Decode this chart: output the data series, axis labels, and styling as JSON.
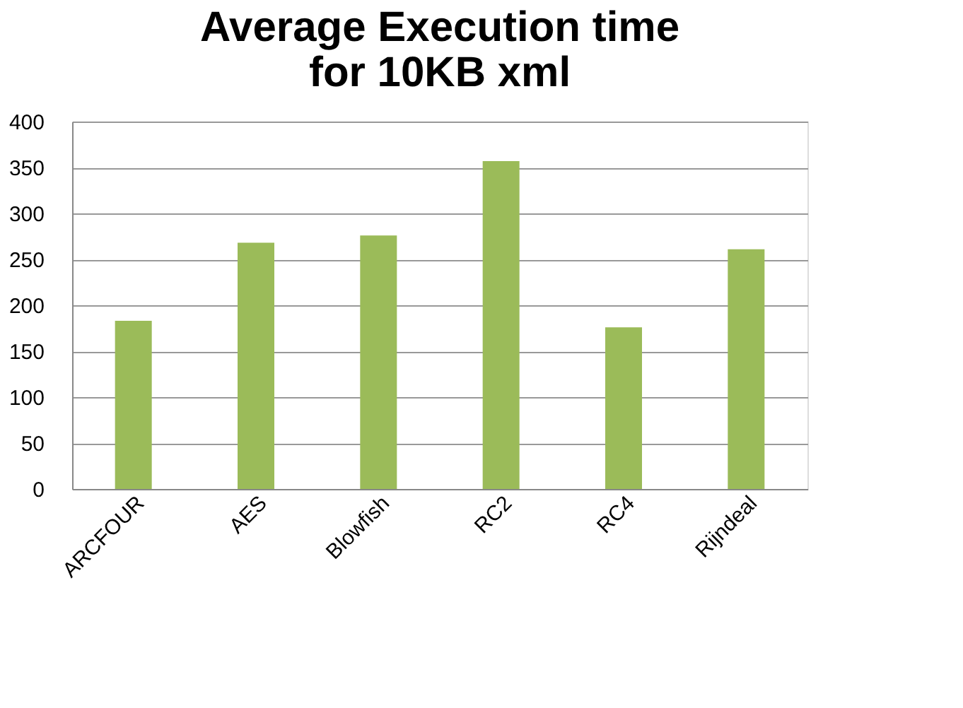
{
  "chart_data": {
    "type": "bar",
    "title": "Average Execution time for 10KB xml",
    "categories": [
      "ARCFOUR",
      "AES",
      "Blowfish",
      "RC2",
      "RC4",
      "Rijndeal"
    ],
    "values": [
      183,
      268,
      276,
      357,
      176,
      261
    ],
    "color": "#9bbb59",
    "ylim": [
      0,
      400
    ],
    "yticks": [
      0,
      50,
      100,
      150,
      200,
      250,
      300,
      350,
      400
    ],
    "grid": "y"
  }
}
